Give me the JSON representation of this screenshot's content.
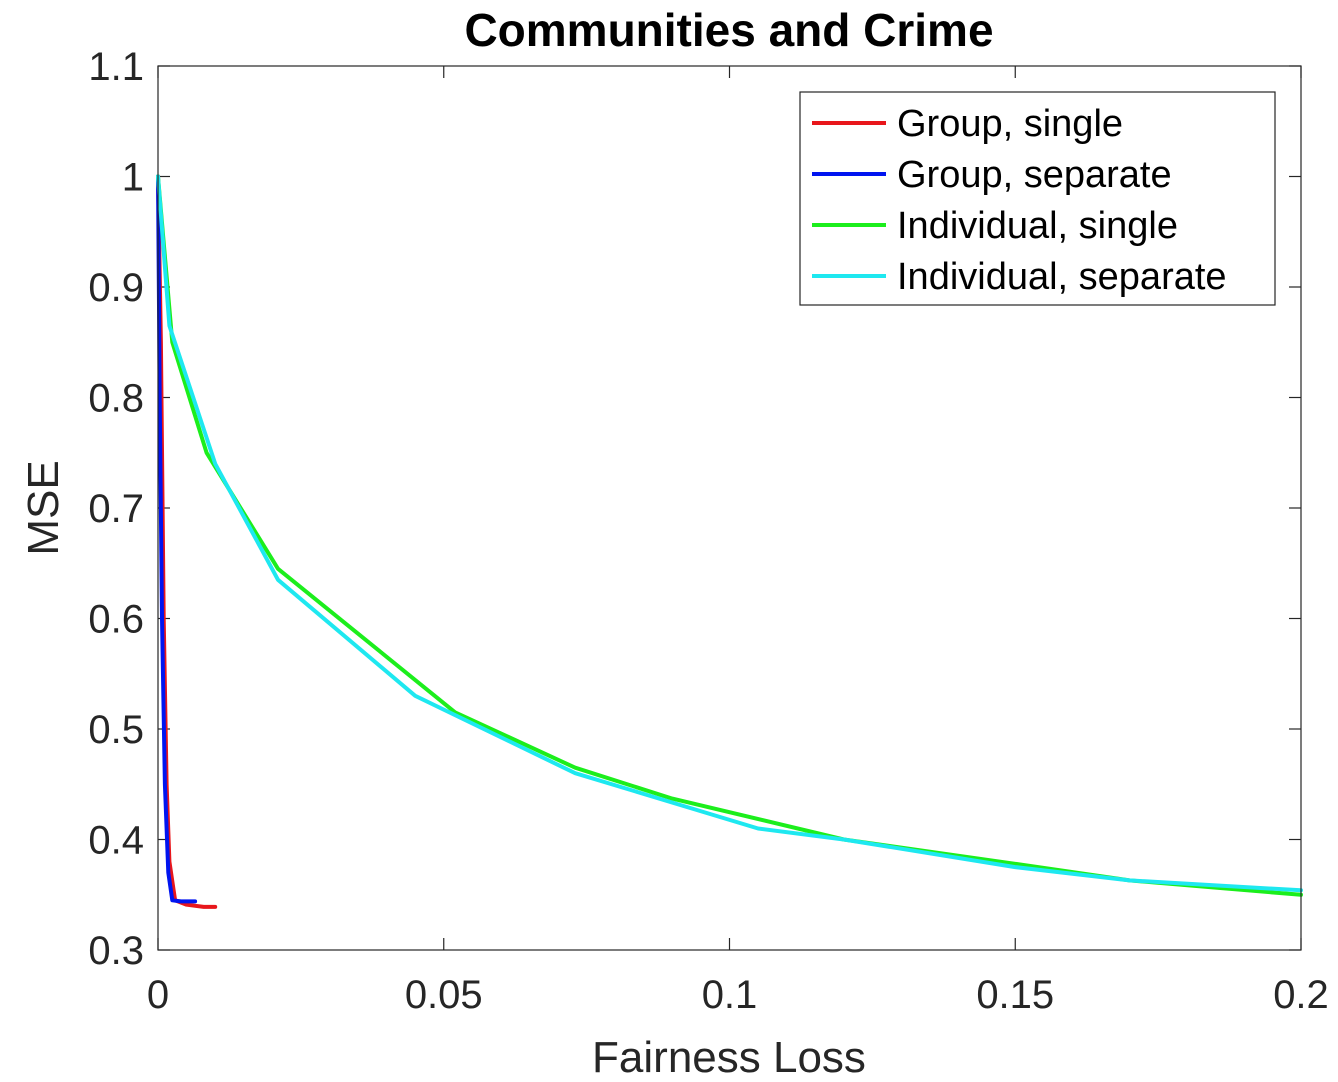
{
  "chart_data": {
    "type": "line",
    "title": "Communities and Crime",
    "xlabel": "Fairness Loss",
    "ylabel": "MSE",
    "xlim": [
      0,
      0.2
    ],
    "ylim": [
      0.3,
      1.1
    ],
    "xticks": [
      0,
      0.05,
      0.1,
      0.15,
      0.2
    ],
    "xtick_labels": [
      "0",
      "0.05",
      "0.1",
      "0.15",
      "0.2"
    ],
    "yticks": [
      0.3,
      0.4,
      0.5,
      0.6,
      0.7,
      0.8,
      0.9,
      1.0,
      1.1
    ],
    "ytick_labels": [
      "0.3",
      "0.4",
      "0.5",
      "0.6",
      "0.7",
      "0.8",
      "0.9",
      "1",
      "1.1"
    ],
    "grid": false,
    "legend_position": "top-right",
    "series": [
      {
        "name": "Group, single",
        "color": "#e8161b",
        "x": [
          0,
          0.0005,
          0.001,
          0.0015,
          0.002,
          0.003,
          0.005,
          0.008,
          0.01
        ],
        "y": [
          1.0,
          0.85,
          0.6,
          0.45,
          0.38,
          0.345,
          0.341,
          0.339,
          0.339
        ]
      },
      {
        "name": "Group, separate",
        "color": "#0014f0",
        "x": [
          0,
          0.0003,
          0.0007,
          0.0012,
          0.0018,
          0.0025,
          0.004,
          0.0065
        ],
        "y": [
          1.0,
          0.8,
          0.6,
          0.45,
          0.37,
          0.345,
          0.344,
          0.344
        ]
      },
      {
        "name": "Individual, single",
        "color": "#1cee1c",
        "x": [
          0,
          0.0025,
          0.0085,
          0.021,
          0.052,
          0.073,
          0.09,
          0.12,
          0.15,
          0.17,
          0.2
        ],
        "y": [
          1.0,
          0.85,
          0.75,
          0.645,
          0.515,
          0.465,
          0.437,
          0.4,
          0.378,
          0.363,
          0.35
        ]
      },
      {
        "name": "Individual, separate",
        "color": "#1ee8f0",
        "x": [
          0,
          0.002,
          0.01,
          0.021,
          0.045,
          0.073,
          0.105,
          0.12,
          0.15,
          0.17,
          0.2
        ],
        "y": [
          1.0,
          0.865,
          0.74,
          0.635,
          0.53,
          0.46,
          0.41,
          0.4,
          0.375,
          0.363,
          0.354
        ]
      }
    ]
  }
}
